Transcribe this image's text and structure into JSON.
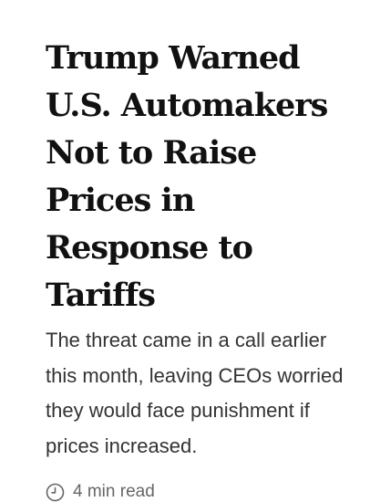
{
  "article": {
    "headline": "Trump Warned U.S. Automakers Not to Raise Prices in Response to Tariffs",
    "summary": "The threat came in a call earlier this month, leaving CEOs worried they would face punishment if prices increased.",
    "read_time": "4 min read",
    "read_time_icon": "clock-icon"
  },
  "colors": {
    "headline": "#111111",
    "summary": "#333333",
    "meta": "#666666",
    "background": "#ffffff"
  }
}
